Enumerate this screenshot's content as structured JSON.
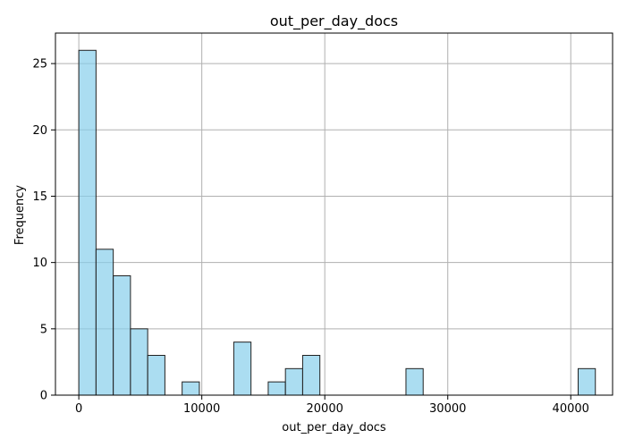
{
  "chart_data": {
    "type": "bar",
    "title": "out_per_day_docs",
    "xlabel": "out_per_day_docs",
    "ylabel": "Frequency",
    "bar_color": "#87ceeb",
    "edge_color": "#222222",
    "grid": true,
    "xlim": [
      -1900,
      43400
    ],
    "ylim": [
      0,
      27.3
    ],
    "xticks": [
      0,
      10000,
      20000,
      30000,
      40000
    ],
    "xtick_labels": [
      "0",
      "10000",
      "20000",
      "30000",
      "40000"
    ],
    "yticks": [
      0,
      5,
      10,
      15,
      20,
      25
    ],
    "ytick_labels": [
      "0",
      "5",
      "10",
      "15",
      "20",
      "25"
    ],
    "bin_start": 0,
    "bin_width": 1400,
    "counts": [
      26,
      11,
      9,
      5,
      3,
      0,
      1,
      0,
      0,
      4,
      0,
      1,
      2,
      3,
      0,
      0,
      0,
      0,
      0,
      2,
      0,
      0,
      0,
      0,
      0,
      0,
      0,
      0,
      0,
      2
    ]
  }
}
